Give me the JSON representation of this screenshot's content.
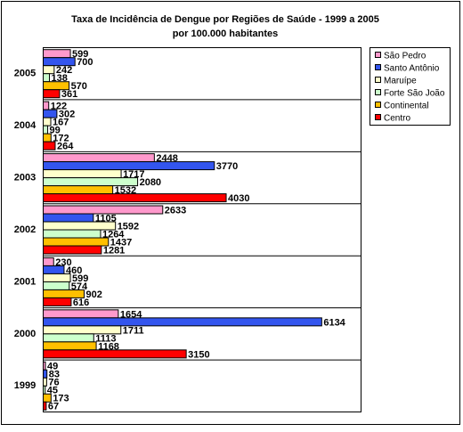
{
  "chart_data": {
    "type": "hbar",
    "title": "Taxa de Incidência de Dengue por Regiões de Saúde - 1999 a 2005",
    "subtitle": "por 100.000 habitantes",
    "categories": [
      "2005",
      "2004",
      "2003",
      "2002",
      "2001",
      "2000",
      "1999"
    ],
    "series": [
      {
        "name": "São Pedro",
        "color": "#ff99cc",
        "values": [
          599,
          122,
          2448,
          2633,
          230,
          1654,
          49
        ]
      },
      {
        "name": "Santo Antônio",
        "color": "#3355ee",
        "values": [
          700,
          302,
          3770,
          1105,
          460,
          6134,
          83
        ]
      },
      {
        "name": "Maruípe",
        "color": "#ffffcc",
        "values": [
          242,
          167,
          1717,
          1592,
          599,
          1711,
          76
        ]
      },
      {
        "name": "Forte São João",
        "color": "#ccffcc",
        "values": [
          138,
          99,
          2080,
          1264,
          574,
          1113,
          45
        ]
      },
      {
        "name": "Continental",
        "color": "#ffc000",
        "values": [
          570,
          172,
          1532,
          1437,
          902,
          1168,
          173
        ]
      },
      {
        "name": "Centro",
        "color": "#ff0000",
        "values": [
          361,
          264,
          4030,
          1281,
          616,
          3150,
          67
        ]
      }
    ],
    "xlim": [
      0,
      7000
    ],
    "legend": "right"
  }
}
